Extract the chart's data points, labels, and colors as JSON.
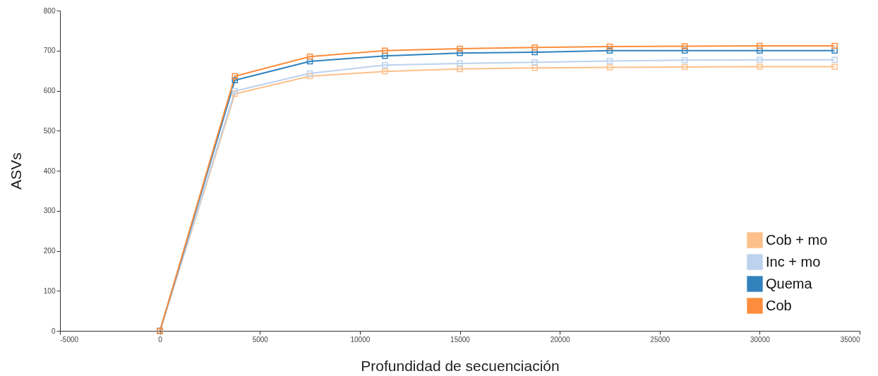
{
  "chart_data": {
    "type": "line",
    "xlabel": "Profundidad de secuenciación",
    "ylabel": "ASVs",
    "x": [
      0,
      3750,
      7500,
      11250,
      15000,
      18750,
      22500,
      26250,
      30000,
      33750
    ],
    "series": [
      {
        "name": "Cob + mo",
        "color": "#fdc08a",
        "values": [
          0,
          592,
          636,
          648,
          654,
          657,
          658,
          659,
          660,
          660
        ]
      },
      {
        "name": "Inc + mo",
        "color": "#bcd2ee",
        "values": [
          0,
          599,
          643,
          664,
          668,
          671,
          674,
          676,
          677,
          677
        ]
      },
      {
        "name": "Quema",
        "color": "#3182bd",
        "values": [
          0,
          626,
          673,
          687,
          694,
          696,
          700,
          700,
          700,
          700
        ]
      },
      {
        "name": "Cob",
        "color": "#fd8d3c",
        "values": [
          0,
          636,
          685,
          700,
          705,
          708,
          710,
          711,
          712,
          712
        ]
      }
    ],
    "xlim": [
      -5000,
      35000
    ],
    "xticks": [
      -5000,
      0,
      5000,
      10000,
      15000,
      20000,
      25000,
      30000,
      35000
    ],
    "ylim": [
      0,
      800
    ],
    "yticks": [
      0,
      100,
      200,
      300,
      400,
      500,
      600,
      700,
      800
    ],
    "grid": false,
    "legend": "bottom right",
    "marker": "square",
    "line_style": "solid"
  }
}
